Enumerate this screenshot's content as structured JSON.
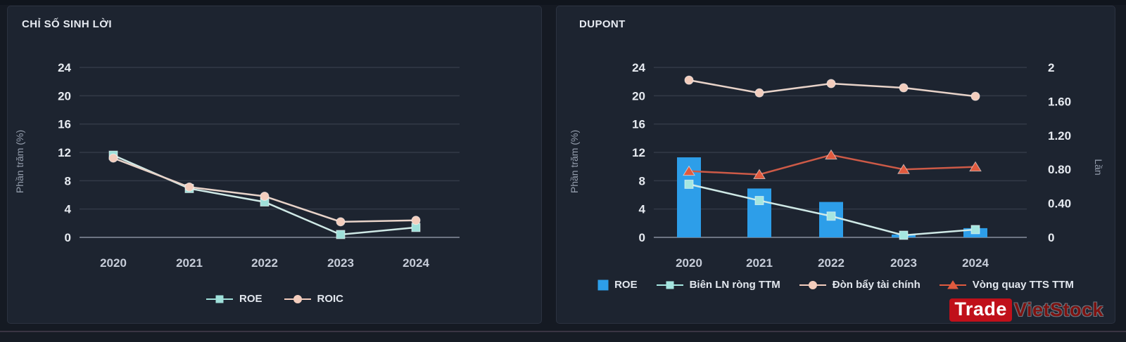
{
  "theme": {
    "page_bg": "#151a23",
    "panel_bg": "#1d2430",
    "panel_border": "#2b3240",
    "grid_color": "#333a47",
    "zero_line_color": "#6e7583",
    "tick_label_color": "#e6eaf0",
    "x_label_color": "#c6ccd8",
    "axis_title_color": "#949dac",
    "legend_label_color": "#e2e7ee"
  },
  "logo": {
    "trade": "Trade",
    "vietstock": "VietStock"
  },
  "chart_data": [
    {
      "type": "line",
      "title": "CHỈ SỐ SINH LỜI",
      "categories": [
        "2020",
        "2021",
        "2022",
        "2023",
        "2024"
      ],
      "ylabel": "Phần trăm (%)",
      "ylim": [
        0,
        24
      ],
      "yticks": [
        0,
        4,
        8,
        12,
        16,
        20,
        24
      ],
      "grid": true,
      "legend_position": "bottom",
      "series": [
        {
          "name": "ROE",
          "marker": "square",
          "color": "#9fe0da",
          "line_color": "#cfe9e6",
          "values": [
            11.6,
            6.9,
            5.0,
            0.4,
            1.4
          ]
        },
        {
          "name": "ROIC",
          "marker": "circle",
          "color": "#f3cdbd",
          "line_color": "#e8d3c9",
          "values": [
            11.2,
            7.1,
            5.8,
            2.2,
            2.4
          ]
        }
      ]
    },
    {
      "type": "combo-bar-line",
      "title": "DUPONT",
      "categories": [
        "2020",
        "2021",
        "2022",
        "2023",
        "2024"
      ],
      "ylabel_left": "Phần trăm (%)",
      "ylabel_right": "Lần",
      "ylim_left": [
        0,
        24
      ],
      "ylim_right": [
        0,
        2
      ],
      "yticks_left": [
        0,
        4,
        8,
        12,
        16,
        20,
        24
      ],
      "yticks_right": {
        "values": [
          0,
          0.4,
          0.8,
          1.2,
          1.6,
          2
        ],
        "labels": [
          "0",
          "0.40",
          "0.80",
          "1.20",
          "1.60",
          "2"
        ]
      },
      "grid": true,
      "legend_position": "bottom",
      "bar": {
        "name": "ROE",
        "axis": "left",
        "color": "#2d9ee9",
        "values": [
          11.3,
          6.9,
          5.0,
          0.4,
          1.3
        ]
      },
      "lines": [
        {
          "name": "Biên LN ròng TTM",
          "marker": "square",
          "axis": "left",
          "color": "#a5e6e0",
          "line_color": "#cfe9e6",
          "values": [
            7.5,
            5.2,
            3.0,
            0.3,
            1.1
          ]
        },
        {
          "name": "Đòn bẩy tài chính",
          "marker": "circle",
          "axis": "right",
          "color": "#f3cdbd",
          "line_color": "#e8d3c9",
          "values": [
            1.85,
            1.7,
            1.81,
            1.76,
            1.66
          ]
        },
        {
          "name": "Vòng quay TTS TTM",
          "marker": "triangle",
          "axis": "right",
          "color": "#e05a3e",
          "line_color": "#cd5a47",
          "values": [
            0.78,
            0.74,
            0.97,
            0.8,
            0.83
          ]
        }
      ]
    }
  ]
}
